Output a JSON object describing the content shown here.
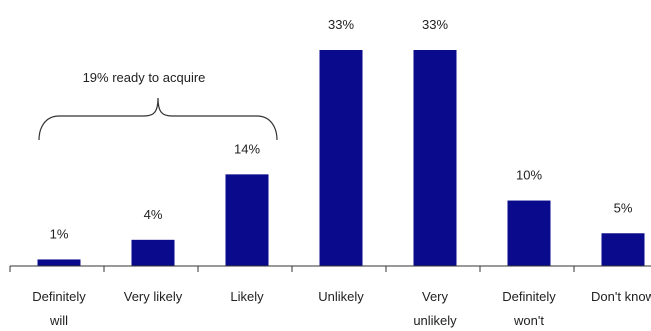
{
  "chart_data": {
    "type": "bar",
    "categories": [
      [
        "Definitely",
        "will"
      ],
      [
        "Very likely"
      ],
      [
        "Likely"
      ],
      [
        "Unlikely"
      ],
      [
        "Very",
        "unlikely"
      ],
      [
        "Definitely",
        "won't"
      ],
      [
        "Don't know"
      ]
    ],
    "values": [
      1,
      4,
      14,
      33,
      33,
      10,
      5
    ],
    "value_labels": [
      "1%",
      "4%",
      "14%",
      "33%",
      "33%",
      "10%",
      "5%"
    ],
    "ylim": [
      0,
      33
    ],
    "bar_color": "#0a0a8c",
    "annotation": {
      "text": "19% ready to acquire",
      "spans_categories": [
        0,
        2
      ]
    }
  }
}
